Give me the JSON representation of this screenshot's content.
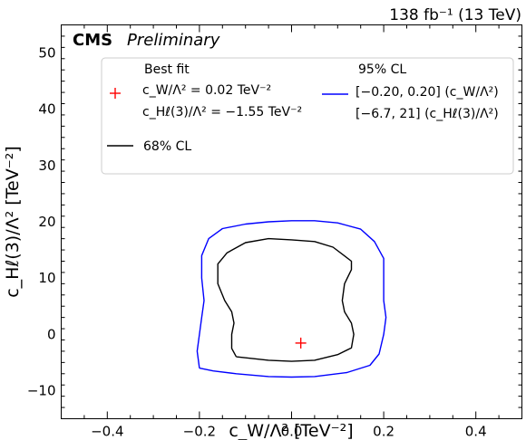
{
  "header": {
    "experiment": "CMS",
    "status": "Preliminary",
    "lumi": "138 fb⁻¹ (13 TeV)"
  },
  "chart_data": {
    "type": "line",
    "xlabel": "c_W/Λ² [TeV⁻²]",
    "ylabel": "c_Hℓ(3)/Λ² [TeV⁻²]",
    "xlim": [
      -0.5,
      0.5
    ],
    "ylim": [
      -15,
      55
    ],
    "xticks": [
      -0.4,
      -0.2,
      0.0,
      0.2,
      0.4
    ],
    "xtick_labels": [
      "−0.4",
      "−0.2",
      "0.0",
      "0.2",
      "0.4"
    ],
    "yticks": [
      -10,
      0,
      10,
      20,
      30,
      40,
      50
    ],
    "ytick_labels": [
      "−10",
      "0",
      "10",
      "20",
      "30",
      "40",
      "50"
    ],
    "best_fit": {
      "x": 0.02,
      "y": -1.55,
      "color": "#ff0000"
    },
    "series": [
      {
        "name": "68% CL",
        "color": "#000000",
        "points": [
          [
            -0.12,
            -4.0
          ],
          [
            -0.05,
            -4.6
          ],
          [
            0.0,
            -4.8
          ],
          [
            0.05,
            -4.6
          ],
          [
            0.1,
            -3.6
          ],
          [
            0.13,
            -2.4
          ],
          [
            0.135,
            0.0
          ],
          [
            0.13,
            2.0
          ],
          [
            0.115,
            4.0
          ],
          [
            0.11,
            6.0
          ],
          [
            0.115,
            9.0
          ],
          [
            0.13,
            11.5
          ],
          [
            0.13,
            13.0
          ],
          [
            0.09,
            15.5
          ],
          [
            0.05,
            16.5
          ],
          [
            0.0,
            16.8
          ],
          [
            -0.05,
            17.0
          ],
          [
            -0.1,
            16.3
          ],
          [
            -0.14,
            14.5
          ],
          [
            -0.16,
            12.5
          ],
          [
            -0.16,
            9.0
          ],
          [
            -0.145,
            6.0
          ],
          [
            -0.13,
            4.0
          ],
          [
            -0.125,
            2.0
          ],
          [
            -0.13,
            0.0
          ],
          [
            -0.13,
            -2.5
          ],
          [
            -0.12,
            -4.0
          ]
        ]
      },
      {
        "name": "95% CL",
        "color": "#0000ff",
        "points": [
          [
            -0.2,
            -6.0
          ],
          [
            -0.17,
            -6.5
          ],
          [
            -0.12,
            -7.0
          ],
          [
            -0.05,
            -7.5
          ],
          [
            0.0,
            -7.6
          ],
          [
            0.05,
            -7.5
          ],
          [
            0.12,
            -6.8
          ],
          [
            0.17,
            -5.5
          ],
          [
            0.19,
            -3.5
          ],
          [
            0.2,
            0.0
          ],
          [
            0.205,
            3.0
          ],
          [
            0.2,
            6.0
          ],
          [
            0.2,
            10.0
          ],
          [
            0.2,
            13.5
          ],
          [
            0.18,
            16.5
          ],
          [
            0.15,
            18.7
          ],
          [
            0.1,
            19.8
          ],
          [
            0.05,
            20.2
          ],
          [
            0.0,
            20.2
          ],
          [
            -0.05,
            20.0
          ],
          [
            -0.1,
            19.6
          ],
          [
            -0.15,
            18.8
          ],
          [
            -0.18,
            17.0
          ],
          [
            -0.195,
            14.0
          ],
          [
            -0.195,
            10.0
          ],
          [
            -0.19,
            6.0
          ],
          [
            -0.195,
            3.0
          ],
          [
            -0.2,
            0.0
          ],
          [
            -0.205,
            -3.0
          ],
          [
            -0.2,
            -6.0
          ]
        ]
      }
    ],
    "legend": {
      "placement": "top",
      "best_fit_title": "Best fit",
      "best_fit_line1": "c_W/Λ² = 0.02 TeV⁻²",
      "best_fit_line2": "c_Hℓ(3)/Λ² = −1.55 TeV⁻²",
      "cl68_label": "68% CL",
      "cl95_title": "95% CL",
      "cl95_line1": "[−0.20, 0.20] (c_W/Λ²)",
      "cl95_line2": "[−6.7, 21] (c_Hℓ(3)/Λ²)"
    }
  }
}
